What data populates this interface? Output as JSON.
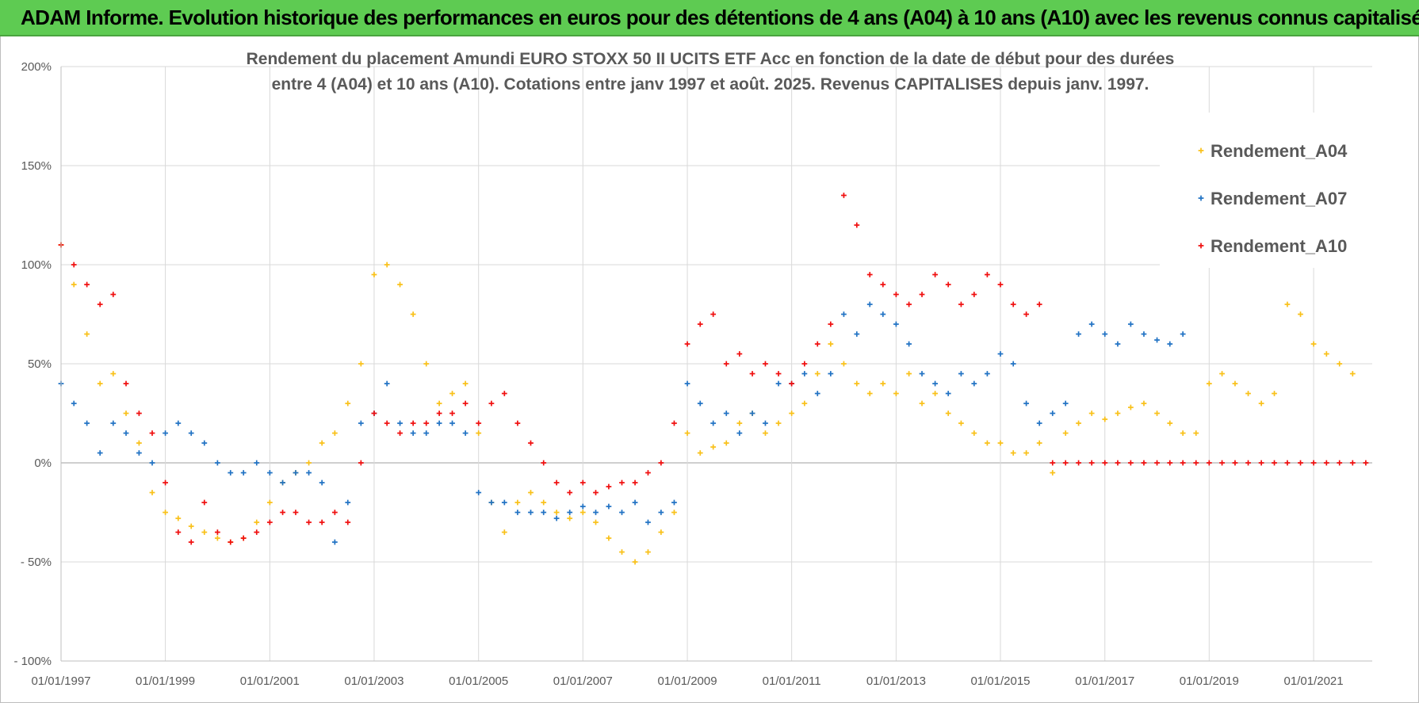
{
  "banner": {
    "title": "ADAM Informe. Evolution historique des performances en euros pour des détentions de 4 ans (A04) à 10 ans (A10) avec les revenus connus capitalisés"
  },
  "chart_data": {
    "type": "scatter",
    "title_lines": [
      "Rendement du placement Amundi EURO STOXX 50 II UCITS ETF Acc en fonction de la date de début pour des durées",
      "entre 4 (A04) et 10 ans (A10).  Cotations entre janv 1997 et août. 2025. Revenus CAPITALISES depuis janv. 1997."
    ],
    "x_axis": {
      "type": "date",
      "range": [
        "1997-01-01",
        "2022-02-15"
      ],
      "tick_labels": [
        "01/01/1997",
        "01/01/1999",
        "01/01/2001",
        "01/01/2003",
        "01/01/2005",
        "01/01/2007",
        "01/01/2009",
        "01/01/2011",
        "01/01/2013",
        "01/01/2015",
        "01/01/2017",
        "01/01/2019",
        "01/01/2021"
      ]
    },
    "y_axis": {
      "unit": "percent",
      "range": [
        -100,
        200
      ],
      "ticks": [
        -100,
        -50,
        0,
        50,
        100,
        150,
        200
      ],
      "tick_labels": [
        "- 100%",
        "- 50%",
        "0%",
        "50%",
        "100%",
        "150%",
        "200%"
      ]
    },
    "grid": true,
    "legend_position": "right",
    "marker": "plus",
    "series": [
      {
        "name": "Rendement_A04",
        "color": "#f9c11a",
        "x": [
          "1997-01-01",
          "1997-04-01",
          "1997-07-01",
          "1997-10-01",
          "1998-01-01",
          "1998-04-01",
          "1998-07-01",
          "1998-10-01",
          "1999-01-01",
          "1999-04-01",
          "1999-07-01",
          "1999-10-01",
          "2000-01-01",
          "2000-04-01",
          "2000-07-01",
          "2000-10-01",
          "2001-01-01",
          "2001-04-01",
          "2001-07-01",
          "2001-10-01",
          "2002-01-01",
          "2002-04-01",
          "2002-07-01",
          "2002-10-01",
          "2003-01-01",
          "2003-04-01",
          "2003-07-01",
          "2003-10-01",
          "2004-01-01",
          "2004-04-01",
          "2004-07-01",
          "2004-10-01",
          "2005-01-01",
          "2005-04-01",
          "2005-07-01",
          "2005-10-01",
          "2006-01-01",
          "2006-04-01",
          "2006-07-01",
          "2006-10-01",
          "2007-01-01",
          "2007-04-01",
          "2007-07-01",
          "2007-10-01",
          "2008-01-01",
          "2008-04-01",
          "2008-07-01",
          "2008-10-01",
          "2009-01-01",
          "2009-04-01",
          "2009-07-01",
          "2009-10-01",
          "2010-01-01",
          "2010-04-01",
          "2010-07-01",
          "2010-10-01",
          "2011-01-01",
          "2011-04-01",
          "2011-07-01",
          "2011-10-01",
          "2012-01-01",
          "2012-04-01",
          "2012-07-01",
          "2012-10-01",
          "2013-01-01",
          "2013-04-01",
          "2013-07-01",
          "2013-10-01",
          "2014-01-01",
          "2014-04-01",
          "2014-07-01",
          "2014-10-01",
          "2015-01-01",
          "2015-04-01",
          "2015-07-01",
          "2015-10-01",
          "2016-01-01",
          "2016-04-01",
          "2016-07-01",
          "2016-10-01",
          "2017-01-01",
          "2017-04-01",
          "2017-07-01",
          "2017-10-01",
          "2018-01-01",
          "2018-04-01",
          "2018-07-01",
          "2018-10-01",
          "2019-01-01",
          "2019-04-01",
          "2019-07-01",
          "2019-10-01",
          "2020-01-01",
          "2020-04-01",
          "2020-07-01",
          "2020-10-01",
          "2021-01-01",
          "2021-04-01",
          "2021-07-01",
          "2021-10-01"
        ],
        "values": [
          110,
          90,
          65,
          40,
          45,
          25,
          10,
          -15,
          -25,
          -28,
          -32,
          -35,
          -38,
          -40,
          -38,
          -30,
          -20,
          -10,
          -5,
          0,
          10,
          15,
          30,
          50,
          95,
          100,
          90,
          75,
          50,
          30,
          35,
          40,
          15,
          -20,
          -35,
          -20,
          -15,
          -20,
          -25,
          -28,
          -25,
          -30,
          -38,
          -45,
          -50,
          -45,
          -35,
          -25,
          15,
          5,
          8,
          10,
          20,
          25,
          15,
          20,
          25,
          30,
          45,
          60,
          50,
          40,
          35,
          40,
          35,
          45,
          30,
          35,
          25,
          20,
          15,
          10,
          10,
          5,
          5,
          10,
          -5,
          15,
          20,
          25,
          22,
          25,
          28,
          30,
          25,
          20,
          15,
          15,
          40,
          45,
          40,
          35,
          30,
          35,
          80,
          75,
          60,
          55,
          50,
          45
        ]
      },
      {
        "name": "Rendement_A07",
        "color": "#2273c4",
        "x": [
          "1997-01-01",
          "1997-04-01",
          "1997-07-01",
          "1997-10-01",
          "1998-01-01",
          "1998-04-01",
          "1998-07-01",
          "1998-10-01",
          "1999-01-01",
          "1999-04-01",
          "1999-07-01",
          "1999-10-01",
          "2000-01-01",
          "2000-04-01",
          "2000-07-01",
          "2000-10-01",
          "2001-01-01",
          "2001-04-01",
          "2001-07-01",
          "2001-10-01",
          "2002-01-01",
          "2002-04-01",
          "2002-07-01",
          "2002-10-01",
          "2003-01-01",
          "2003-04-01",
          "2003-07-01",
          "2003-10-01",
          "2004-01-01",
          "2004-04-01",
          "2004-07-01",
          "2004-10-01",
          "2005-01-01",
          "2005-04-01",
          "2005-07-01",
          "2005-10-01",
          "2006-01-01",
          "2006-04-01",
          "2006-07-01",
          "2006-10-01",
          "2007-01-01",
          "2007-04-01",
          "2007-07-01",
          "2007-10-01",
          "2008-01-01",
          "2008-04-01",
          "2008-07-01",
          "2008-10-01",
          "2009-01-01",
          "2009-04-01",
          "2009-07-01",
          "2009-10-01",
          "2010-01-01",
          "2010-04-01",
          "2010-07-01",
          "2010-10-01",
          "2011-01-01",
          "2011-04-01",
          "2011-07-01",
          "2011-10-01",
          "2012-01-01",
          "2012-04-01",
          "2012-07-01",
          "2012-10-01",
          "2013-01-01",
          "2013-04-01",
          "2013-07-01",
          "2013-10-01",
          "2014-01-01",
          "2014-04-01",
          "2014-07-01",
          "2014-10-01",
          "2015-01-01",
          "2015-04-01",
          "2015-07-01",
          "2015-10-01",
          "2016-01-01",
          "2016-04-01",
          "2016-07-01",
          "2016-10-01",
          "2017-01-01",
          "2017-04-01",
          "2017-07-01",
          "2017-10-01",
          "2018-01-01",
          "2018-04-01",
          "2018-07-01"
        ],
        "values": [
          40,
          30,
          20,
          5,
          20,
          15,
          5,
          0,
          15,
          20,
          15,
          10,
          0,
          -5,
          -5,
          0,
          -5,
          -10,
          -5,
          -5,
          -10,
          -40,
          -20,
          20,
          25,
          40,
          20,
          15,
          15,
          20,
          20,
          15,
          -15,
          -20,
          -20,
          -25,
          -25,
          -25,
          -28,
          -25,
          -22,
          -25,
          -22,
          -25,
          -20,
          -30,
          -25,
          -20,
          40,
          30,
          20,
          25,
          15,
          25,
          20,
          40,
          40,
          45,
          35,
          45,
          75,
          65,
          80,
          75,
          70,
          60,
          45,
          40,
          35,
          45,
          40,
          45,
          55,
          50,
          30,
          20,
          25,
          30,
          65,
          70,
          65,
          60,
          70,
          65,
          62,
          60,
          65
        ]
      },
      {
        "name": "Rendement_A10",
        "color": "#f01010",
        "x": [
          "1997-01-01",
          "1997-04-01",
          "1997-07-01",
          "1997-10-01",
          "1998-01-01",
          "1998-04-01",
          "1998-07-01",
          "1998-10-01",
          "1999-01-01",
          "1999-04-01",
          "1999-07-01",
          "1999-10-01",
          "2000-01-01",
          "2000-04-01",
          "2000-07-01",
          "2000-10-01",
          "2001-01-01",
          "2001-04-01",
          "2001-07-01",
          "2001-10-01",
          "2002-01-01",
          "2002-04-01",
          "2002-07-01",
          "2002-10-01",
          "2003-01-01",
          "2003-04-01",
          "2003-07-01",
          "2003-10-01",
          "2004-01-01",
          "2004-04-01",
          "2004-07-01",
          "2004-10-01",
          "2005-01-01",
          "2005-04-01",
          "2005-07-01",
          "2005-10-01",
          "2006-01-01",
          "2006-04-01",
          "2006-07-01",
          "2006-10-01",
          "2007-01-01",
          "2007-04-01",
          "2007-07-01",
          "2007-10-01",
          "2008-01-01",
          "2008-04-01",
          "2008-07-01",
          "2008-10-01",
          "2009-01-01",
          "2009-04-01",
          "2009-07-01",
          "2009-10-01",
          "2010-01-01",
          "2010-04-01",
          "2010-07-01",
          "2010-10-01",
          "2011-01-01",
          "2011-04-01",
          "2011-07-01",
          "2011-10-01",
          "2012-01-01",
          "2012-04-01",
          "2012-07-01",
          "2012-10-01",
          "2013-01-01",
          "2013-04-01",
          "2013-07-01",
          "2013-10-01",
          "2014-01-01",
          "2014-04-01",
          "2014-07-01",
          "2014-10-01",
          "2015-01-01",
          "2015-04-01",
          "2015-07-01",
          "2015-10-01",
          "2016-01-01",
          "2016-04-01",
          "2016-07-01",
          "2016-10-01",
          "2017-01-01",
          "2017-04-01",
          "2017-07-01",
          "2017-10-01",
          "2018-01-01",
          "2018-04-01",
          "2018-07-01",
          "2018-10-01",
          "2019-01-01",
          "2019-04-01",
          "2019-07-01",
          "2019-10-01",
          "2020-01-01",
          "2020-04-01",
          "2020-07-01",
          "2020-10-01",
          "2021-01-01",
          "2021-04-01",
          "2021-07-01",
          "2021-10-01",
          "2022-01-01"
        ],
        "values": [
          110,
          100,
          90,
          80,
          85,
          40,
          25,
          15,
          -10,
          -35,
          -40,
          -20,
          -35,
          -40,
          -38,
          -35,
          -30,
          -25,
          -25,
          -30,
          -30,
          -25,
          -30,
          0,
          25,
          20,
          15,
          20,
          20,
          25,
          25,
          30,
          20,
          30,
          35,
          20,
          10,
          0,
          -10,
          -15,
          -10,
          -15,
          -12,
          -10,
          -10,
          -5,
          0,
          20,
          60,
          70,
          75,
          50,
          55,
          45,
          50,
          45,
          40,
          50,
          60,
          70,
          135,
          120,
          95,
          90,
          85,
          80,
          85,
          95,
          90,
          80,
          85,
          95,
          90,
          80,
          75,
          80,
          0,
          0,
          0,
          0,
          0,
          0,
          0,
          0,
          0,
          0,
          0,
          0,
          0,
          0,
          0,
          0,
          0,
          0,
          0,
          0,
          0,
          0,
          0,
          0,
          0
        ]
      }
    ]
  }
}
